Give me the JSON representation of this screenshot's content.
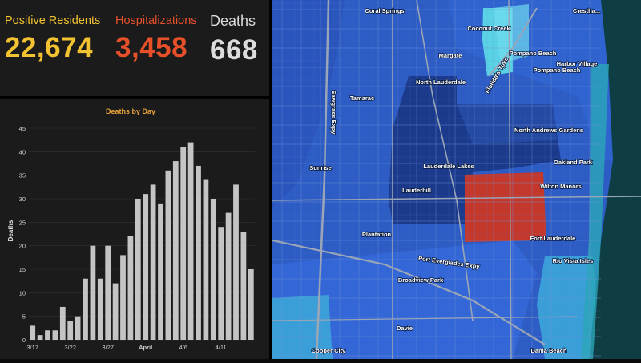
{
  "stats": {
    "positive": {
      "label": "Positive Residents",
      "value": "22,674",
      "color": "#f2c230"
    },
    "hospitalizations": {
      "label": "Hospitalizations",
      "value": "3,458",
      "color": "#e8502a"
    },
    "deaths": {
      "label": "Deaths",
      "value": "668",
      "color": "#dcdcdc"
    }
  },
  "chart_data": {
    "type": "bar",
    "title": "Deaths by Day",
    "ylabel": "Deaths",
    "xlabel": "",
    "ylim": [
      0,
      45
    ],
    "yticks": [
      0,
      5,
      10,
      15,
      20,
      25,
      30,
      35,
      40,
      45
    ],
    "x_tick_labels": [
      {
        "index": 0,
        "label": "3/17"
      },
      {
        "index": 5,
        "label": "3/22"
      },
      {
        "index": 10,
        "label": "3/27"
      },
      {
        "index": 15,
        "label": "April"
      },
      {
        "index": 20,
        "label": "4/6"
      },
      {
        "index": 25,
        "label": "4/11"
      }
    ],
    "bar_color": "#c4c4c4",
    "values": [
      3,
      1,
      2,
      2,
      7,
      4,
      5,
      13,
      20,
      13,
      20,
      12,
      18,
      22,
      30,
      31,
      33,
      29,
      36,
      38,
      41,
      42,
      37,
      34,
      30,
      24,
      27,
      33,
      23,
      15
    ]
  },
  "map": {
    "labels": [
      {
        "text": "Coral Springs"
      },
      {
        "text": "Coconut Creek"
      },
      {
        "text": "Margate"
      },
      {
        "text": "Pompano Beach"
      },
      {
        "text": "Crestha..."
      },
      {
        "text": "Harbor Village"
      },
      {
        "text": "Pompano Beach"
      },
      {
        "text": "North Lauderdale"
      },
      {
        "text": "Tamarac"
      },
      {
        "text": "North Andrews Gardens"
      },
      {
        "text": "Lauderdale Lakes"
      },
      {
        "text": "Oakland Park"
      },
      {
        "text": "Sunrise"
      },
      {
        "text": "Lauderhill"
      },
      {
        "text": "Wilton Manors"
      },
      {
        "text": "Plantation"
      },
      {
        "text": "Fort Lauderdale"
      },
      {
        "text": "Rio Vista Isles"
      },
      {
        "text": "Broadview Park"
      },
      {
        "text": "Davie"
      },
      {
        "text": "Dania Beach"
      },
      {
        "text": "Cooper City"
      },
      {
        "text": "Sawgrass Expy"
      },
      {
        "text": "Florida's Tpke"
      },
      {
        "text": "Port Everglades Expy"
      }
    ]
  }
}
